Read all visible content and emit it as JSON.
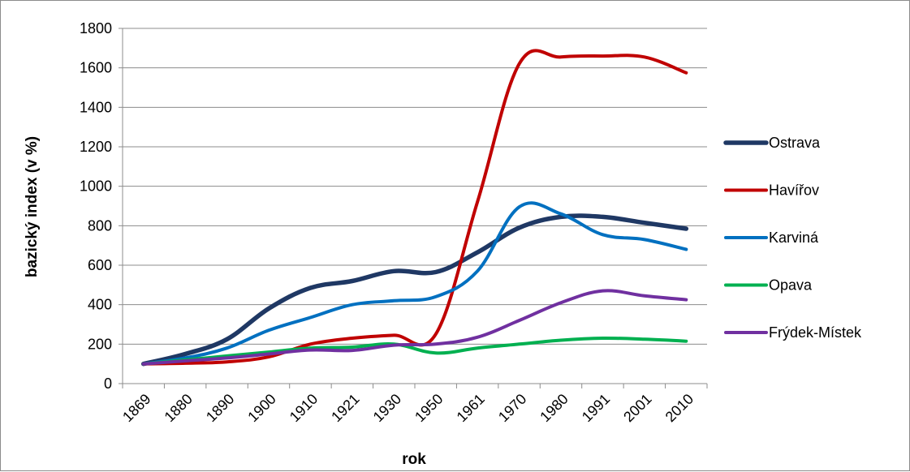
{
  "chart_data": {
    "type": "line",
    "title": "",
    "xlabel": "rok",
    "ylabel": "bazický index (v %)",
    "categories": [
      "1869",
      "1880",
      "1890",
      "1900",
      "1910",
      "1921",
      "1930",
      "1950",
      "1961",
      "1970",
      "1980",
      "1991",
      "2001",
      "2010"
    ],
    "ylim": [
      0,
      1800
    ],
    "yticks": [
      0,
      200,
      400,
      600,
      800,
      1000,
      1200,
      1400,
      1600,
      1800
    ],
    "grid": true,
    "legend_position": "right",
    "series": [
      {
        "name": "Ostrava",
        "color": "#1f3864",
        "values": [
          100,
          150,
          225,
          380,
          485,
          520,
          570,
          565,
          665,
          790,
          845,
          845,
          815,
          785
        ]
      },
      {
        "name": "Havířov",
        "color": "#c00000",
        "values": [
          100,
          103,
          110,
          135,
          200,
          230,
          245,
          250,
          920,
          1620,
          1655,
          1660,
          1655,
          1575
        ]
      },
      {
        "name": "Karviná",
        "color": "#0070c0",
        "values": [
          100,
          130,
          180,
          270,
          335,
          400,
          420,
          440,
          570,
          895,
          860,
          755,
          730,
          680
        ]
      },
      {
        "name": "Opava",
        "color": "#00b050",
        "values": [
          100,
          120,
          140,
          160,
          180,
          185,
          200,
          155,
          180,
          200,
          220,
          230,
          225,
          215
        ]
      },
      {
        "name": "Frýdek-Místek",
        "color": "#7030a0",
        "values": [
          100,
          115,
          130,
          150,
          170,
          168,
          195,
          200,
          235,
          320,
          410,
          470,
          445,
          425
        ]
      }
    ]
  }
}
